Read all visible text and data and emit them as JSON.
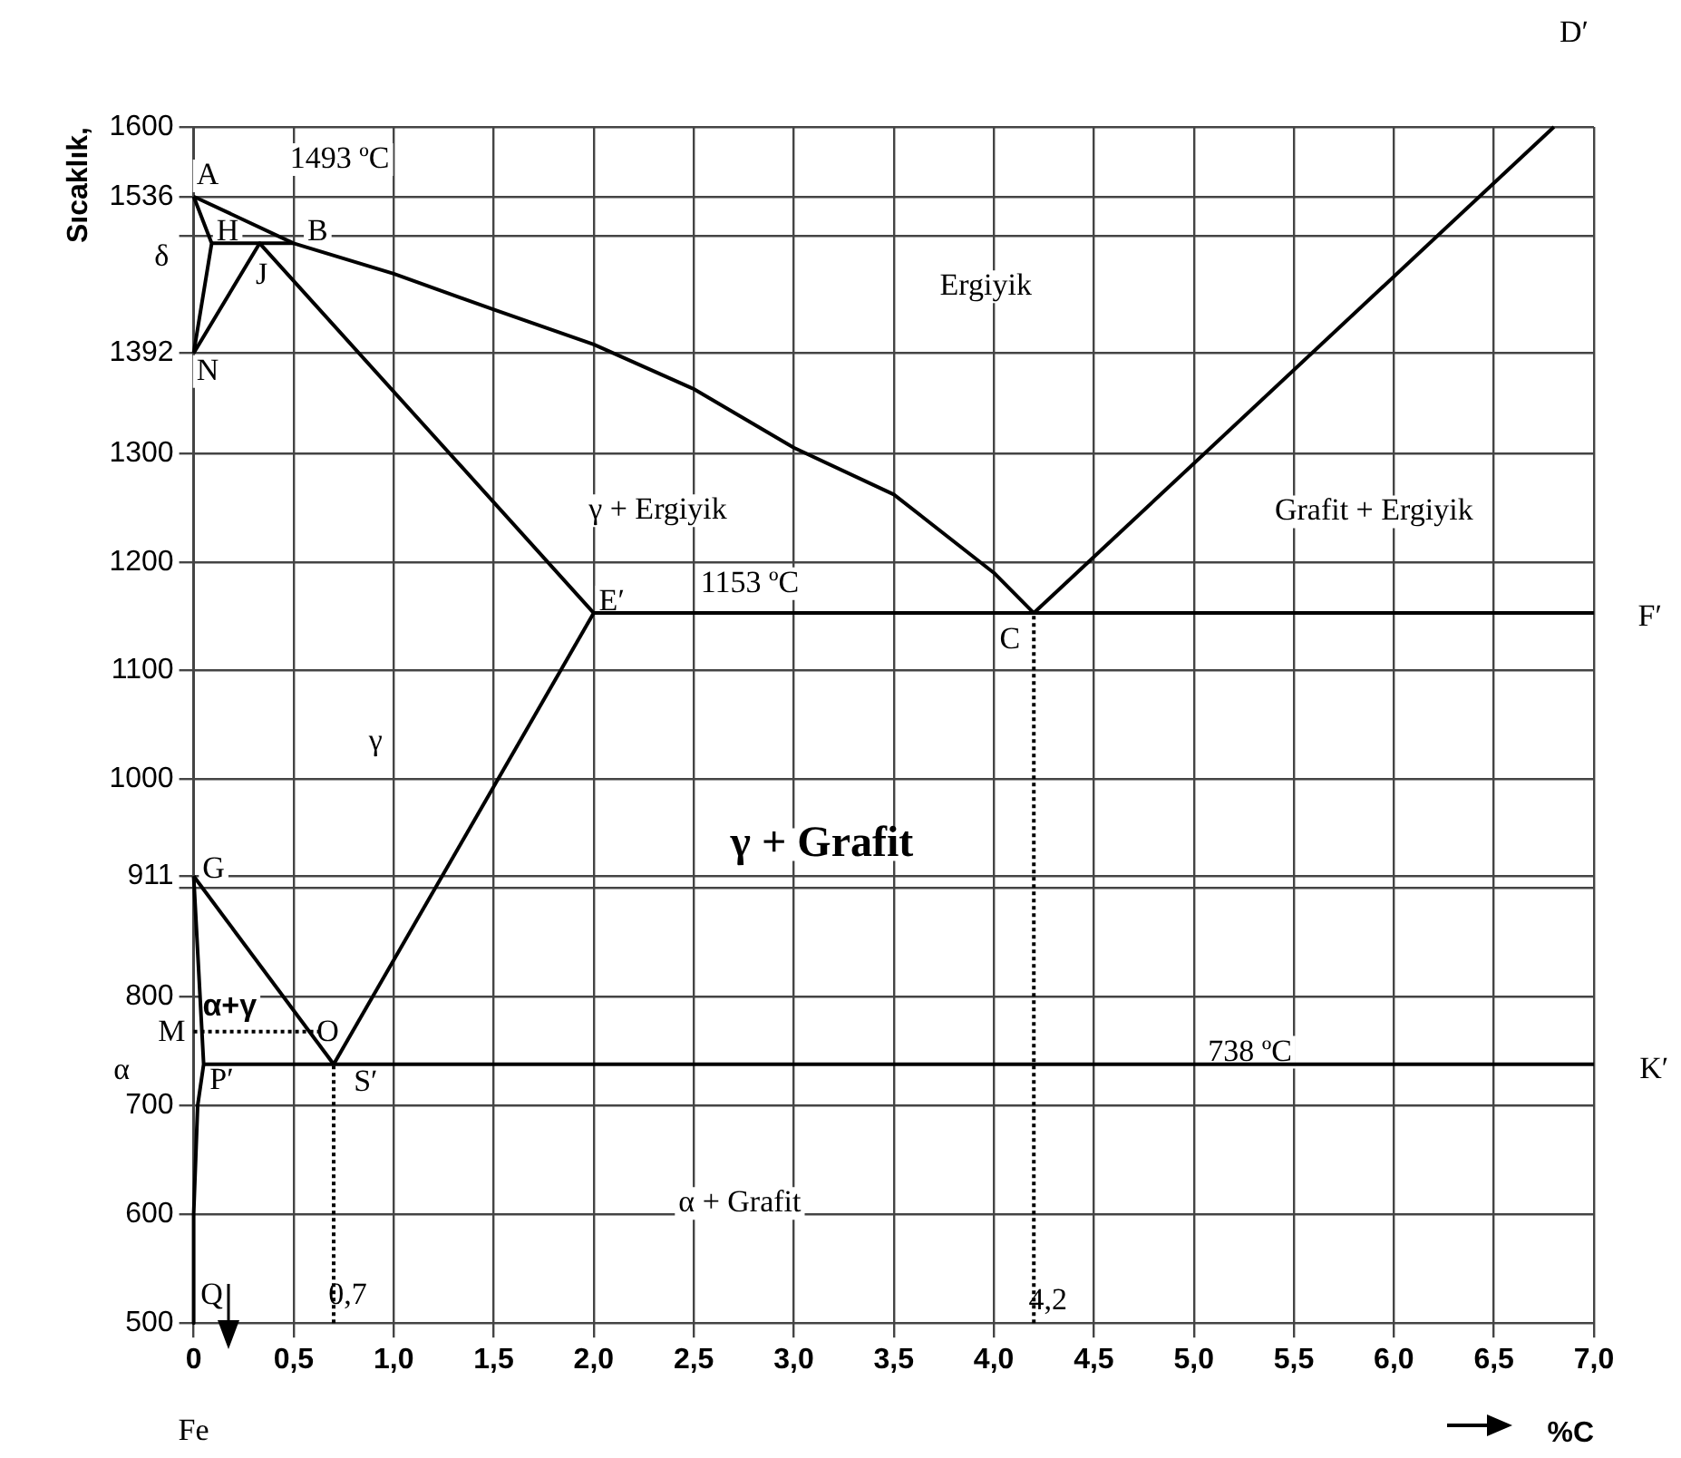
{
  "chart_data": {
    "type": "line",
    "xlabel": "%C",
    "ylabel": "Sıcaklık,",
    "xlim": [
      0,
      7
    ],
    "ylim": [
      500,
      1600
    ],
    "xticks": [
      0,
      {
        "value": 0.5,
        "label": "0,5"
      },
      {
        "value": 1,
        "label": "1,0"
      },
      {
        "value": 1.5,
        "label": "1,5"
      },
      {
        "value": 2,
        "label": "2,0"
      },
      {
        "value": 2.5,
        "label": "2,5"
      },
      {
        "value": 3,
        "label": "3,0"
      },
      {
        "value": 3.5,
        "label": "3,5"
      },
      {
        "value": 4,
        "label": "4,0"
      },
      {
        "value": 4.5,
        "label": "4,5"
      },
      {
        "value": 5,
        "label": "5,0"
      },
      {
        "value": 5.5,
        "label": "5,5"
      },
      {
        "value": 6,
        "label": "6,0"
      },
      {
        "value": 6.5,
        "label": "6,5"
      },
      {
        "value": 7,
        "label": "7,0"
      }
    ],
    "yticks": [
      500,
      600,
      700,
      800,
      {
        "value": 900,
        "label": null
      },
      911,
      1000,
      1100,
      1200,
      1300,
      1392,
      {
        "value": 1500,
        "label": null
      },
      1536,
      1600
    ],
    "grid": true,
    "legend": false,
    "line_style": "solid",
    "series": [
      {
        "color": "#000000",
        "x": [
          0,
          0.5,
          1.0,
          1.5,
          2.0,
          2.5,
          3.0,
          3.5,
          4.0,
          4.2
        ],
        "values": [
          1536,
          1493,
          1465,
          1432,
          1400,
          1359,
          1305,
          1262,
          1190,
          1153
        ]
      },
      {
        "color": "#000000",
        "x": [
          0,
          0.09,
          0
        ],
        "values": [
          1536,
          1493,
          1392
        ]
      },
      {
        "color": "#000000",
        "x": [
          0.09,
          0.5
        ],
        "values": [
          1493,
          1493
        ]
      },
      {
        "color": "#000000",
        "x": [
          0,
          0.33,
          2.0
        ],
        "values": [
          1392,
          1493,
          1153
        ]
      },
      {
        "color": "#000000",
        "x": [
          2.0,
          7.0
        ],
        "values": [
          1153,
          1153
        ]
      },
      {
        "color": "#000000",
        "x": [
          4.2,
          6.8
        ],
        "values": [
          1153,
          1600
        ]
      },
      {
        "color": "#000000",
        "x": [
          0.7,
          2.0
        ],
        "values": [
          738,
          1153
        ]
      },
      {
        "color": "#000000",
        "x": [
          0,
          0.7
        ],
        "values": [
          911,
          738
        ]
      },
      {
        "color": "#000000",
        "x": [
          0,
          0.05,
          0.02,
          0,
          0
        ],
        "values": [
          911,
          738,
          700,
          600,
          500
        ]
      },
      {
        "color": "#000000",
        "x": [
          0.05,
          7.0
        ],
        "values": [
          738,
          738
        ]
      },
      {
        "color": "#000000",
        "line_style": "dotted",
        "x": [
          0,
          0.65
        ],
        "values": [
          768,
          768
        ]
      },
      {
        "color": "#000000",
        "line_style": "dotted",
        "x": [
          0.7,
          0.7
        ],
        "values": [
          500,
          738
        ]
      },
      {
        "color": "#000000",
        "line_style": "dotted",
        "x": [
          4.2,
          4.2
        ],
        "values": [
          500,
          1153
        ]
      }
    ],
    "annotations": [
      {
        "text": "A",
        "x": 0.07,
        "y": 1555
      },
      {
        "text": "H",
        "x": 0.17,
        "y": 1503
      },
      {
        "text": "B",
        "x": 0.62,
        "y": 1503
      },
      {
        "text": "J",
        "x": 0.34,
        "y": 1463
      },
      {
        "text": "N",
        "x": 0.07,
        "y": 1375
      },
      "δ",
      "1493 ºC",
      "Ergiyik",
      "γ + Ergiyik",
      "Grafit + Ergiyik",
      {
        "text": "E′",
        "x": 2.09,
        "y": 1163
      },
      "1153 ºC",
      {
        "text": "C",
        "x": 4.08,
        "y": 1128
      },
      "F′",
      "D′",
      {
        "text": "γ",
        "x": 0.91,
        "y": 1035
      },
      "γ + Grafit",
      {
        "text": "G",
        "x": 0.1,
        "y": 917
      },
      {
        "text": "α+γ",
        "x": 0.18,
        "y": 791
      },
      {
        "text": "M",
        "x": -0.11,
        "y": 767
      },
      {
        "text": "O",
        "x": 0.67,
        "y": 767
      },
      "α",
      {
        "text": "P′",
        "x": 0.14,
        "y": 723
      },
      {
        "text": "S′",
        "x": 0.86,
        "y": 721
      },
      "738 ºC",
      "K′",
      "α + Grafit",
      {
        "text": "Q",
        "x": 0.09,
        "y": 525
      },
      {
        "text": "0,7",
        "x": 0.77,
        "y": 525
      },
      {
        "text": "4,2",
        "x": 4.27,
        "y": 520
      },
      "Fe"
    ]
  }
}
